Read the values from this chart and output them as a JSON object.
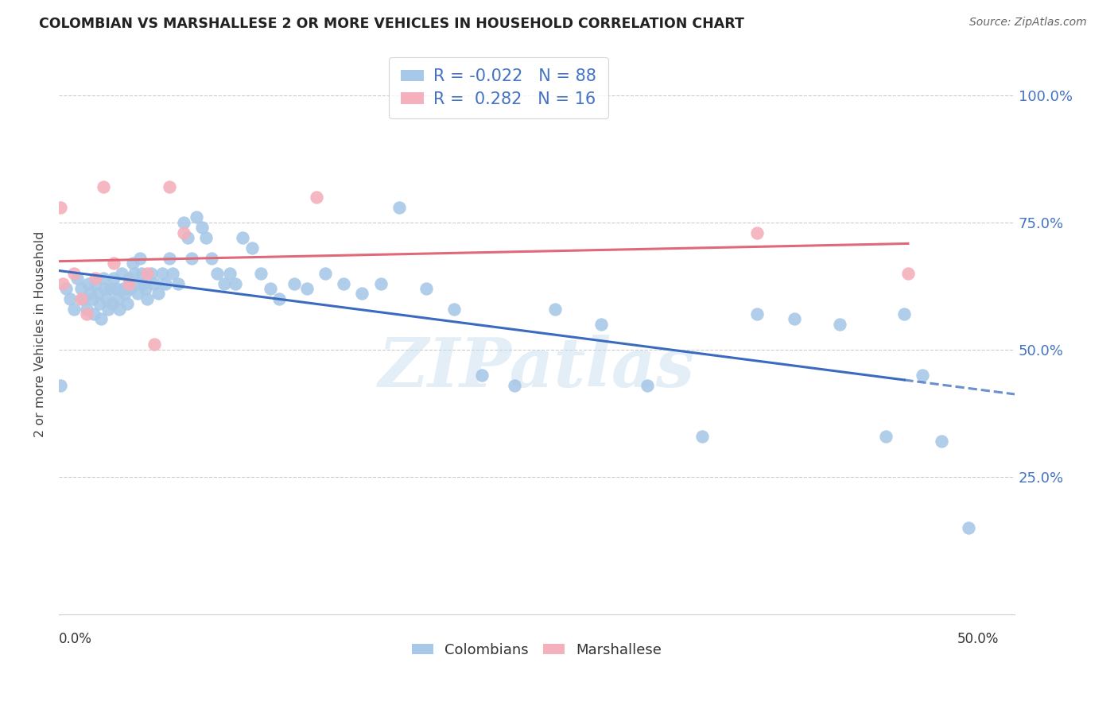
{
  "title": "COLOMBIAN VS MARSHALLESE 2 OR MORE VEHICLES IN HOUSEHOLD CORRELATION CHART",
  "source": "Source: ZipAtlas.com",
  "ylabel": "2 or more Vehicles in Household",
  "xlim": [
    0.0,
    0.52
  ],
  "ylim": [
    -0.02,
    1.08
  ],
  "ytick_vals": [
    0.25,
    0.5,
    0.75,
    1.0
  ],
  "ytick_labels_right": [
    "25.0%",
    "50.0%",
    "75.0%",
    "100.0%"
  ],
  "watermark": "ZIPatlas",
  "blue_color": "#a8c8e8",
  "pink_color": "#f4b0bc",
  "line_blue": "#3a6bbf",
  "line_pink": "#e06878",
  "legend_text_color": "#4472c4",
  "col_R": -0.022,
  "col_N": 88,
  "mar_R": 0.282,
  "mar_N": 16,
  "colombian_x": [
    0.001,
    0.004,
    0.006,
    0.008,
    0.01,
    0.012,
    0.013,
    0.015,
    0.016,
    0.017,
    0.018,
    0.019,
    0.02,
    0.021,
    0.022,
    0.023,
    0.024,
    0.025,
    0.026,
    0.027,
    0.028,
    0.029,
    0.03,
    0.031,
    0.032,
    0.033,
    0.034,
    0.035,
    0.036,
    0.037,
    0.038,
    0.039,
    0.04,
    0.041,
    0.042,
    0.043,
    0.044,
    0.045,
    0.046,
    0.047,
    0.048,
    0.05,
    0.052,
    0.054,
    0.056,
    0.058,
    0.06,
    0.062,
    0.065,
    0.068,
    0.07,
    0.072,
    0.075,
    0.078,
    0.08,
    0.083,
    0.086,
    0.09,
    0.093,
    0.096,
    0.1,
    0.105,
    0.11,
    0.115,
    0.12,
    0.128,
    0.135,
    0.145,
    0.155,
    0.165,
    0.175,
    0.185,
    0.2,
    0.215,
    0.23,
    0.248,
    0.27,
    0.295,
    0.32,
    0.35,
    0.38,
    0.4,
    0.425,
    0.45,
    0.46,
    0.47,
    0.48,
    0.495
  ],
  "colombian_y": [
    0.43,
    0.62,
    0.6,
    0.58,
    0.64,
    0.62,
    0.6,
    0.58,
    0.63,
    0.61,
    0.6,
    0.57,
    0.63,
    0.61,
    0.59,
    0.56,
    0.64,
    0.62,
    0.6,
    0.58,
    0.62,
    0.59,
    0.64,
    0.62,
    0.6,
    0.58,
    0.65,
    0.62,
    0.61,
    0.59,
    0.64,
    0.62,
    0.67,
    0.65,
    0.63,
    0.61,
    0.68,
    0.65,
    0.63,
    0.62,
    0.6,
    0.65,
    0.63,
    0.61,
    0.65,
    0.63,
    0.68,
    0.65,
    0.63,
    0.75,
    0.72,
    0.68,
    0.76,
    0.74,
    0.72,
    0.68,
    0.65,
    0.63,
    0.65,
    0.63,
    0.72,
    0.7,
    0.65,
    0.62,
    0.6,
    0.63,
    0.62,
    0.65,
    0.63,
    0.61,
    0.63,
    0.78,
    0.62,
    0.58,
    0.45,
    0.43,
    0.58,
    0.55,
    0.43,
    0.33,
    0.57,
    0.56,
    0.55,
    0.33,
    0.57,
    0.45,
    0.32,
    0.15
  ],
  "marshallese_x": [
    0.001,
    0.002,
    0.008,
    0.012,
    0.015,
    0.02,
    0.024,
    0.03,
    0.038,
    0.048,
    0.052,
    0.06,
    0.068,
    0.14,
    0.38,
    0.462
  ],
  "marshallese_y": [
    0.78,
    0.63,
    0.65,
    0.6,
    0.57,
    0.64,
    0.82,
    0.67,
    0.63,
    0.65,
    0.51,
    0.82,
    0.73,
    0.8,
    0.73,
    0.65
  ]
}
